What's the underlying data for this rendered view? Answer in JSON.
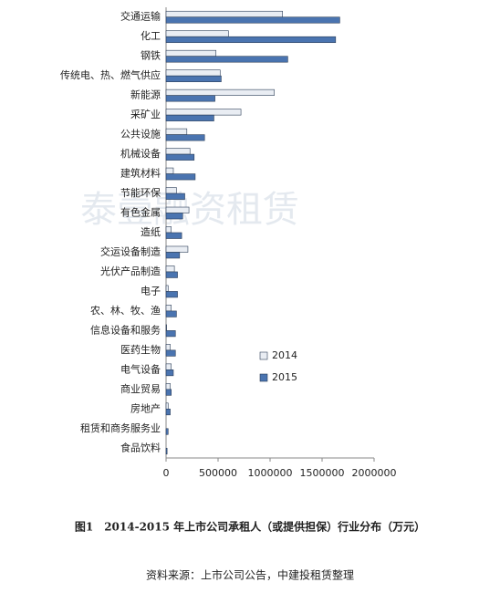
{
  "chart_data": {
    "type": "hbar",
    "watermark": "泰壹融资租赁",
    "caption": "图1　2014-2015 年上市公司承租人（或提供担保）行业分布（万元）",
    "source": "资料来源：上市公司公告，中建投租赁整理",
    "categories": [
      "交通运输",
      "化工",
      "钢铁",
      "传统电、热、燃气供应",
      "新能源",
      "采矿业",
      "公共设施",
      "机械设备",
      "建筑材料",
      "节能环保",
      "有色金属",
      "造纸",
      "交运设备制造",
      "光伏产品制造",
      "电子",
      "农、林、牧、渔",
      "信息设备和服务",
      "医药生物",
      "电气设备",
      "商业贸易",
      "房地产",
      "租赁和商务服务业",
      "食品饮料"
    ],
    "series": [
      {
        "name": "2014",
        "color": "#e9edf3",
        "values": [
          1120000,
          600000,
          480000,
          520000,
          1040000,
          720000,
          200000,
          230000,
          70000,
          100000,
          220000,
          50000,
          210000,
          80000,
          20000,
          50000,
          5000,
          40000,
          50000,
          40000,
          20000,
          0,
          0
        ]
      },
      {
        "name": "2015",
        "color": "#4a74b0",
        "values": [
          1670000,
          1630000,
          1170000,
          530000,
          470000,
          460000,
          370000,
          270000,
          280000,
          180000,
          160000,
          150000,
          130000,
          110000,
          110000,
          100000,
          90000,
          90000,
          70000,
          50000,
          40000,
          20000,
          10000
        ]
      }
    ],
    "xlim": [
      0,
      2000000
    ],
    "xticks": [
      0,
      500000,
      1000000,
      1500000,
      2000000
    ],
    "legend": "center"
  }
}
